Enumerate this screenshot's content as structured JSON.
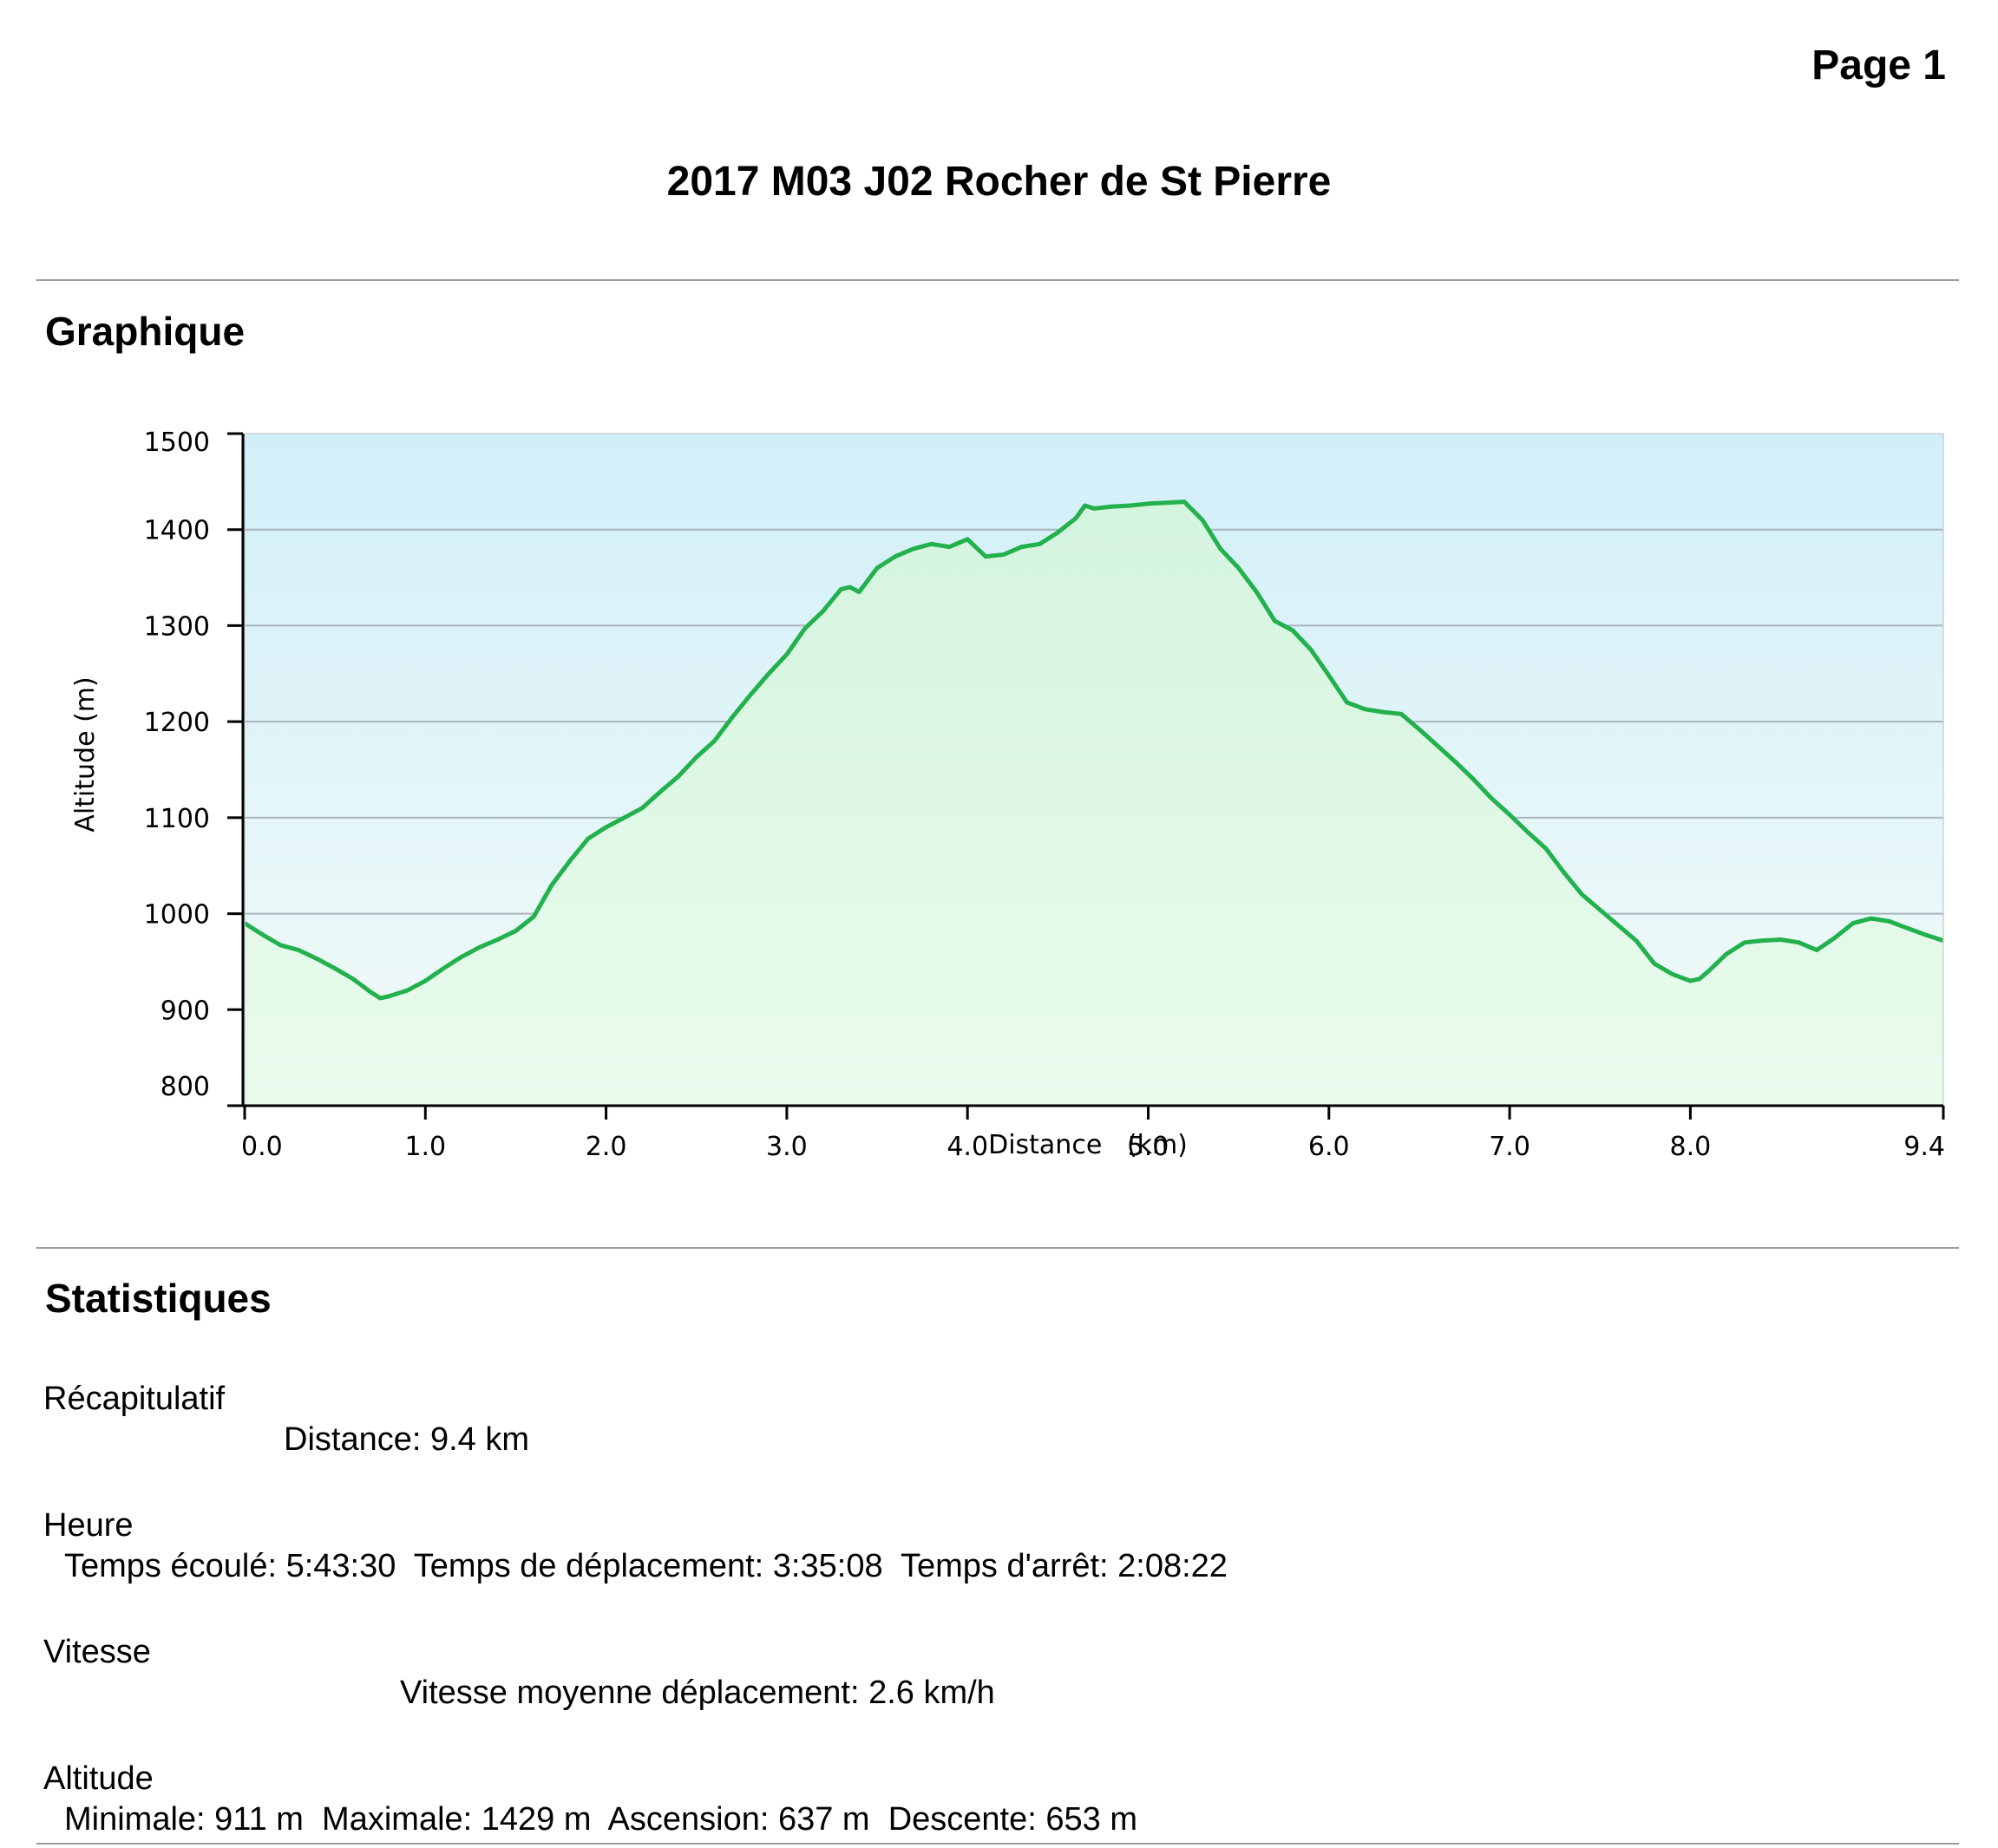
{
  "page_label": "Page 1",
  "title": "2017 M03 J02 Rocher de St Pierre",
  "sections": {
    "chart_heading": "Graphique",
    "stats_heading": "Statistiques"
  },
  "colors": {
    "line": "#22b14c",
    "fill_top": "#d4f4de",
    "fill_bottom": "#eafbee",
    "bg_top": "#d2eff9",
    "bg_bottom": "#f2fbf8",
    "grid": "#a9b4bb",
    "rule": "#9a9a9a"
  },
  "chart_data": {
    "type": "area",
    "title": "",
    "xlabel": "Distance   (km)",
    "ylabel": "Altitude (m)",
    "xlim": [
      0,
      9.4
    ],
    "ylim": [
      800,
      1500
    ],
    "x_ticks": [
      "0.0",
      "1.0",
      "2.0",
      "3.0",
      "4.0",
      "5.0",
      "6.0",
      "7.0",
      "8.0",
      "9.4"
    ],
    "x_tick_values": [
      0,
      1,
      2,
      3,
      4,
      5,
      6,
      7,
      8,
      9.4
    ],
    "y_ticks": [
      "800",
      "900",
      "1000",
      "1100",
      "1200",
      "1300",
      "1400",
      "1500"
    ],
    "y_tick_values": [
      800,
      900,
      1000,
      1100,
      1200,
      1300,
      1400,
      1500
    ],
    "grid": true,
    "series": [
      {
        "x": [
          0,
          0.1,
          0.2,
          0.3,
          0.4,
          0.5,
          0.6,
          0.7,
          0.75,
          0.8,
          0.9,
          1.0,
          1.1,
          1.2,
          1.3,
          1.4,
          1.5,
          1.6,
          1.7,
          1.8,
          1.9,
          2.0,
          2.1,
          2.2,
          2.3,
          2.4,
          2.5,
          2.6,
          2.7,
          2.8,
          2.9,
          3.0,
          3.1,
          3.2,
          3.3,
          3.35,
          3.4,
          3.5,
          3.6,
          3.7,
          3.8,
          3.9,
          4.0,
          4.1,
          4.2,
          4.3,
          4.4,
          4.5,
          4.6,
          4.65,
          4.7,
          4.8,
          4.9,
          5.0,
          5.1,
          5.2,
          5.3,
          5.4,
          5.5,
          5.6,
          5.7,
          5.8,
          5.9,
          6.0,
          6.1,
          6.2,
          6.3,
          6.4,
          6.5,
          6.6,
          6.7,
          6.8,
          6.9,
          7.0,
          7.1,
          7.2,
          7.3,
          7.4,
          7.5,
          7.6,
          7.7,
          7.8,
          7.9,
          8.0,
          8.05,
          8.1,
          8.2,
          8.3,
          8.4,
          8.5,
          8.6,
          8.7,
          8.8,
          8.9,
          9.0,
          9.1,
          9.2,
          9.3,
          9.4
        ],
        "y": [
          990,
          978,
          967,
          962,
          953,
          943,
          932,
          918,
          912,
          914,
          920,
          930,
          943,
          955,
          965,
          973,
          982,
          997,
          1030,
          1055,
          1078,
          1090,
          1100,
          1110,
          1127,
          1143,
          1163,
          1180,
          1205,
          1228,
          1250,
          1270,
          1297,
          1315,
          1338,
          1340,
          1335,
          1360,
          1372,
          1380,
          1385,
          1382,
          1390,
          1372,
          1374,
          1382,
          1385,
          1397,
          1412,
          1425,
          1422,
          1424,
          1425,
          1427,
          1428,
          1429,
          1410,
          1380,
          1360,
          1335,
          1305,
          1295,
          1275,
          1248,
          1220,
          1213,
          1210,
          1208,
          1192,
          1175,
          1158,
          1140,
          1120,
          1103,
          1085,
          1068,
          1043,
          1020,
          1004,
          988,
          972,
          948,
          937,
          930,
          932,
          940,
          958,
          970,
          972,
          973,
          970,
          962,
          975,
          990,
          995,
          992,
          985,
          978,
          972
        ]
      }
    ]
  },
  "stats": {
    "summary": {
      "heading": "Récapitulatif",
      "line": "Distance: 9.4 km"
    },
    "time": {
      "heading": "Heure",
      "line": "Temps écoulé: 5:43:30  Temps de déplacement: 3:35:08  Temps d'arrêt: 2:08:22"
    },
    "speed": {
      "heading": "Vitesse",
      "line": "Vitesse moyenne déplacement: 2.6 km/h"
    },
    "altitude": {
      "heading": "Altitude",
      "line": "Minimale: 911 m  Maximale: 1429 m  Ascension: 637 m  Descente: 653 m"
    }
  }
}
